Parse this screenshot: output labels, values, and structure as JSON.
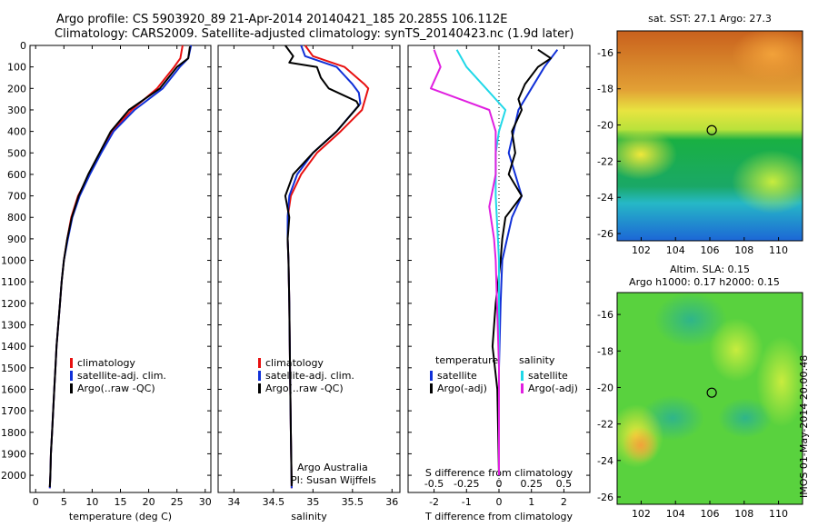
{
  "header": {
    "line1": "Argo profile: CS 5903920_89 21-Apr-2014 20140421_185 20.285S 106.112E",
    "line2": "Climatology: CARS2009. Satellite-adjusted climatology: synTS_20140423.nc (1.9d later)"
  },
  "side_note": "IMOS 01-May-2014 20:00:48",
  "colors": {
    "climatology": "#e81010",
    "satellite": "#1030d8",
    "argo": "#000000",
    "sat_salinity": "#20d8e8",
    "argo_salinity": "#e020e0"
  },
  "chart_data": [
    {
      "id": "temperature",
      "type": "line",
      "xlabel": "temperature (deg C)",
      "ylabel": "",
      "xlim": [
        -1,
        31
      ],
      "ylim": [
        2080,
        0
      ],
      "xticks": [
        0,
        5,
        10,
        15,
        20,
        25,
        30
      ],
      "yticks": [
        0,
        100,
        200,
        300,
        400,
        500,
        600,
        700,
        800,
        900,
        1000,
        1100,
        1200,
        1300,
        1400,
        1500,
        1600,
        1700,
        1800,
        1900,
        2000
      ],
      "legend": {
        "placement": "lower-middle",
        "entries": [
          "climatology",
          "satellite-adj. clim.",
          "Argo(..raw -QC)"
        ]
      },
      "series": [
        {
          "name": "climatology",
          "color": "#e81010",
          "points": [
            [
              26.0,
              0
            ],
            [
              25.6,
              60
            ],
            [
              24.5,
              100
            ],
            [
              21.5,
              200
            ],
            [
              17.0,
              300
            ],
            [
              13.5,
              400
            ],
            [
              11.5,
              500
            ],
            [
              9.5,
              600
            ],
            [
              7.5,
              700
            ],
            [
              6.3,
              800
            ],
            [
              5.6,
              900
            ],
            [
              5.0,
              1000
            ],
            [
              4.6,
              1100
            ],
            [
              4.3,
              1200
            ],
            [
              4.0,
              1300
            ],
            [
              3.7,
              1400
            ],
            [
              3.5,
              1500
            ],
            [
              3.3,
              1600
            ],
            [
              3.1,
              1700
            ],
            [
              2.9,
              1800
            ],
            [
              2.7,
              1900
            ],
            [
              2.6,
              2000
            ],
            [
              2.5,
              2060
            ]
          ]
        },
        {
          "name": "satellite-adj. clim.",
          "color": "#1030d8",
          "points": [
            [
              27.5,
              0
            ],
            [
              27.0,
              60
            ],
            [
              25.5,
              100
            ],
            [
              22.5,
              200
            ],
            [
              17.5,
              300
            ],
            [
              13.8,
              400
            ],
            [
              11.6,
              500
            ],
            [
              9.6,
              600
            ],
            [
              7.8,
              700
            ],
            [
              6.5,
              800
            ],
            [
              5.7,
              900
            ],
            [
              5.0,
              1000
            ],
            [
              4.6,
              1100
            ],
            [
              4.3,
              1200
            ],
            [
              4.0,
              1300
            ],
            [
              3.7,
              1400
            ],
            [
              3.5,
              1500
            ],
            [
              3.3,
              1600
            ],
            [
              3.1,
              1700
            ],
            [
              2.9,
              1800
            ],
            [
              2.7,
              1900
            ],
            [
              2.6,
              2000
            ],
            [
              2.5,
              2060
            ]
          ]
        },
        {
          "name": "Argo(..raw -QC)",
          "color": "#000000",
          "points": [
            [
              27.3,
              5
            ],
            [
              27.0,
              60
            ],
            [
              25.0,
              100
            ],
            [
              22.0,
              200
            ],
            [
              16.5,
              300
            ],
            [
              13.3,
              400
            ],
            [
              11.3,
              500
            ],
            [
              9.3,
              600
            ],
            [
              7.6,
              700
            ],
            [
              6.4,
              800
            ],
            [
              5.6,
              900
            ],
            [
              5.0,
              1000
            ],
            [
              4.6,
              1100
            ],
            [
              4.3,
              1200
            ],
            [
              4.0,
              1300
            ],
            [
              3.7,
              1400
            ],
            [
              3.5,
              1500
            ],
            [
              3.3,
              1600
            ],
            [
              3.1,
              1700
            ],
            [
              2.9,
              1800
            ],
            [
              2.7,
              1900
            ],
            [
              2.6,
              2000
            ],
            [
              2.5,
              2055
            ]
          ]
        }
      ]
    },
    {
      "id": "salinity",
      "type": "line",
      "xlabel": "salinity",
      "ylabel": "",
      "xlim": [
        33.8,
        36.1
      ],
      "ylim": [
        2080,
        0
      ],
      "xticks": [
        34,
        34.5,
        35,
        35.5,
        36
      ],
      "xticklabels": [
        "34",
        "34.5",
        "35",
        "35.5",
        "36"
      ],
      "legend": {
        "placement": "lower-middle",
        "entries": [
          "climatology",
          "satellite-adj. clim.",
          "Argo(..raw -QC)"
        ]
      },
      "annotations": [
        "Argo Australia",
        "PI: Susan Wijffels"
      ],
      "series": [
        {
          "name": "climatology",
          "color": "#e81010",
          "points": [
            [
              34.9,
              0
            ],
            [
              35.0,
              50
            ],
            [
              35.4,
              100
            ],
            [
              35.65,
              180
            ],
            [
              35.7,
              200
            ],
            [
              35.62,
              300
            ],
            [
              35.35,
              400
            ],
            [
              35.05,
              500
            ],
            [
              34.85,
              600
            ],
            [
              34.72,
              700
            ],
            [
              34.68,
              800
            ],
            [
              34.68,
              900
            ],
            [
              34.69,
              1000
            ],
            [
              34.7,
              1200
            ],
            [
              34.71,
              1500
            ],
            [
              34.72,
              1800
            ],
            [
              34.73,
              2060
            ]
          ]
        },
        {
          "name": "satellite-adj. clim.",
          "color": "#1030d8",
          "points": [
            [
              34.85,
              0
            ],
            [
              34.9,
              50
            ],
            [
              35.3,
              100
            ],
            [
              35.5,
              180
            ],
            [
              35.58,
              220
            ],
            [
              35.6,
              270
            ],
            [
              35.3,
              400
            ],
            [
              35.0,
              500
            ],
            [
              34.8,
              600
            ],
            [
              34.7,
              700
            ],
            [
              34.68,
              800
            ],
            [
              34.68,
              900
            ],
            [
              34.69,
              1000
            ],
            [
              34.7,
              1200
            ],
            [
              34.71,
              1500
            ],
            [
              34.72,
              1800
            ],
            [
              34.73,
              2060
            ]
          ]
        },
        {
          "name": "Argo(..raw -QC)",
          "color": "#000000",
          "points": [
            [
              34.65,
              0
            ],
            [
              34.75,
              50
            ],
            [
              34.7,
              80
            ],
            [
              35.05,
              100
            ],
            [
              35.1,
              150
            ],
            [
              35.2,
              200
            ],
            [
              35.55,
              260
            ],
            [
              35.58,
              280
            ],
            [
              35.3,
              400
            ],
            [
              35.0,
              500
            ],
            [
              34.75,
              600
            ],
            [
              34.65,
              700
            ],
            [
              34.7,
              800
            ],
            [
              34.68,
              900
            ],
            [
              34.69,
              1000
            ],
            [
              34.7,
              1200
            ],
            [
              34.71,
              1500
            ],
            [
              34.72,
              1800
            ],
            [
              34.73,
              2050
            ]
          ]
        }
      ]
    },
    {
      "id": "difference",
      "type": "line",
      "xlabel": "T difference from climatology",
      "xlabel_top": "S difference from climatology",
      "ylabel": "",
      "xlim": [
        -2.8,
        2.8
      ],
      "ylim": [
        2080,
        0
      ],
      "xticks": [
        -2,
        -1,
        0,
        1,
        2
      ],
      "xticks_top": [
        -0.5,
        -0.25,
        0,
        0.25,
        0.5
      ],
      "xticklabels_top": [
        "-0.5",
        "-0.25",
        "0",
        "0.25",
        "0.5"
      ],
      "legend": {
        "placement": "lower-middle",
        "headers": [
          "temperature",
          "salinity"
        ],
        "entries": [
          "satellite",
          "Argo(-adj)",
          "satellite",
          "Argo(-adj)"
        ]
      },
      "series": [
        {
          "name": "satellite",
          "group": "temperature",
          "color": "#1030d8",
          "points": [
            [
              1.8,
              20
            ],
            [
              1.4,
              100
            ],
            [
              1.0,
              200
            ],
            [
              0.6,
              300
            ],
            [
              0.45,
              400
            ],
            [
              0.3,
              500
            ],
            [
              0.5,
              600
            ],
            [
              0.7,
              700
            ],
            [
              0.4,
              800
            ],
            [
              0.25,
              900
            ],
            [
              0.1,
              1000
            ],
            [
              0.05,
              1200
            ],
            [
              0.0,
              1500
            ],
            [
              0.0,
              2000
            ]
          ]
        },
        {
          "name": "Argo(-adj)",
          "group": "temperature",
          "color": "#000000",
          "points": [
            [
              1.2,
              20
            ],
            [
              1.6,
              60
            ],
            [
              1.2,
              100
            ],
            [
              0.8,
              180
            ],
            [
              0.6,
              250
            ],
            [
              0.7,
              300
            ],
            [
              0.4,
              400
            ],
            [
              0.5,
              500
            ],
            [
              0.3,
              600
            ],
            [
              0.7,
              700
            ],
            [
              0.2,
              800
            ],
            [
              0.1,
              900
            ],
            [
              0.05,
              1000
            ],
            [
              -0.1,
              1200
            ],
            [
              -0.2,
              1400
            ],
            [
              -0.05,
              1600
            ],
            [
              0.0,
              2000
            ]
          ]
        },
        {
          "name": "satellite",
          "group": "salinity",
          "color": "#20d8e8",
          "points": [
            [
              -1.3,
              20
            ],
            [
              -1.0,
              100
            ],
            [
              -0.4,
              200
            ],
            [
              0.2,
              300
            ],
            [
              0.0,
              400
            ],
            [
              -0.1,
              500
            ],
            [
              -0.1,
              700
            ],
            [
              0.0,
              1000
            ],
            [
              0.0,
              2000
            ]
          ]
        },
        {
          "name": "Argo(-adj)",
          "group": "salinity",
          "color": "#e020e0",
          "points": [
            [
              -2.0,
              20
            ],
            [
              -1.8,
              100
            ],
            [
              -2.1,
              200
            ],
            [
              -0.3,
              300
            ],
            [
              -0.1,
              400
            ],
            [
              -0.1,
              600
            ],
            [
              -0.3,
              750
            ],
            [
              -0.15,
              900
            ],
            [
              -0.1,
              1000
            ],
            [
              0.0,
              1500
            ],
            [
              0.0,
              2000
            ]
          ]
        }
      ]
    },
    {
      "id": "sst-map",
      "type": "heatmap",
      "title": "sat. SST: 27.1  Argo: 27.3",
      "xlim": [
        100.6,
        111.4
      ],
      "ylim": [
        -26.4,
        -14.8
      ],
      "xticks": [
        102,
        104,
        106,
        108,
        110
      ],
      "yticks": [
        -16,
        -18,
        -20,
        -22,
        -24,
        -26
      ],
      "marker": {
        "lon": 106.112,
        "lat": -20.285
      }
    },
    {
      "id": "sla-map",
      "type": "heatmap",
      "title": "Altim. SLA: 0.15",
      "subtitle": "Argo h1000: 0.17 h2000: 0.15",
      "xlim": [
        100.6,
        111.4
      ],
      "ylim": [
        -26.4,
        -14.8
      ],
      "xticks": [
        102,
        104,
        106,
        108,
        110
      ],
      "yticks": [
        -16,
        -18,
        -20,
        -22,
        -24,
        -26
      ],
      "marker": {
        "lon": 106.112,
        "lat": -20.285
      }
    }
  ]
}
